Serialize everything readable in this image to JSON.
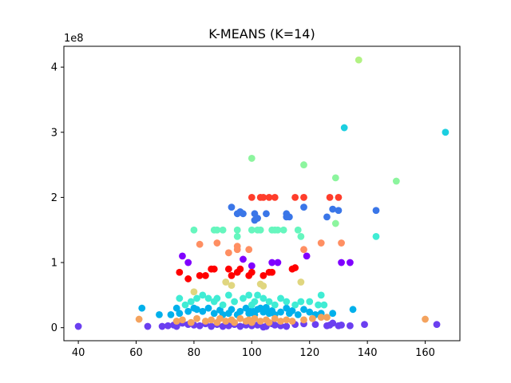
{
  "chart_data": {
    "type": "scatter",
    "title": "K-MEANS (K=14)",
    "xlabel": "",
    "ylabel": "",
    "y_offset_label": "1e8",
    "xlim": [
      35,
      172
    ],
    "ylim": [
      -20000000,
      432000000
    ],
    "xticks": [
      40,
      60,
      80,
      100,
      120,
      140,
      160
    ],
    "yticks": [
      0,
      100000000,
      200000000,
      300000000,
      400000000
    ],
    "ytick_labels": [
      "0",
      "1",
      "2",
      "3",
      "4"
    ],
    "grid": false,
    "legend": "none",
    "series": [
      {
        "color": "#8000ff",
        "points": [
          [
            76,
            110000000
          ],
          [
            78,
            100000000
          ],
          [
            97,
            105000000
          ],
          [
            100,
            95000000
          ],
          [
            107,
            100000000
          ],
          [
            109,
            100000000
          ],
          [
            119,
            110000000
          ],
          [
            131,
            100000000
          ],
          [
            134,
            100000000
          ]
        ]
      },
      {
        "color": "#6b3ff0",
        "points": [
          [
            40,
            2000000
          ],
          [
            64,
            2000000
          ],
          [
            69,
            2000000
          ],
          [
            71,
            3000000
          ],
          [
            73,
            4000000
          ],
          [
            74,
            2000000
          ],
          [
            76,
            7000000
          ],
          [
            78,
            5000000
          ],
          [
            80,
            4000000
          ],
          [
            82,
            3000000
          ],
          [
            84,
            6000000
          ],
          [
            86,
            2000000
          ],
          [
            88,
            5000000
          ],
          [
            90,
            2000000
          ],
          [
            92,
            3000000
          ],
          [
            94,
            5000000
          ],
          [
            96,
            2000000
          ],
          [
            98,
            4000000
          ],
          [
            100,
            3000000
          ],
          [
            102,
            4000000
          ],
          [
            104,
            1000000
          ],
          [
            105,
            2000000
          ],
          [
            107,
            6000000
          ],
          [
            108,
            4000000
          ],
          [
            110,
            3000000
          ],
          [
            112,
            2000000
          ],
          [
            115,
            5000000
          ],
          [
            118,
            6000000
          ],
          [
            122,
            5000000
          ],
          [
            126,
            3000000
          ],
          [
            127,
            4000000
          ],
          [
            128,
            7000000
          ],
          [
            130,
            3000000
          ],
          [
            131,
            4000000
          ],
          [
            134,
            3000000
          ],
          [
            139,
            5000000
          ],
          [
            164,
            5000000
          ]
        ]
      },
      {
        "color": "#3a76e8",
        "points": [
          [
            93,
            185000000
          ],
          [
            95,
            175000000
          ],
          [
            96,
            178000000
          ],
          [
            97,
            175000000
          ],
          [
            101,
            165000000
          ],
          [
            101,
            175000000
          ],
          [
            102,
            168000000
          ],
          [
            105,
            175000000
          ],
          [
            112,
            175000000
          ],
          [
            112,
            170000000
          ],
          [
            113,
            170000000
          ],
          [
            118,
            185000000
          ],
          [
            126,
            170000000
          ],
          [
            128,
            182000000
          ],
          [
            130,
            180000000
          ],
          [
            143,
            180000000
          ]
        ]
      },
      {
        "color": "#00b0eb",
        "points": [
          [
            62,
            30000000
          ],
          [
            68,
            20000000
          ],
          [
            72,
            20000000
          ],
          [
            74,
            30000000
          ],
          [
            75,
            22000000
          ],
          [
            78,
            25000000
          ],
          [
            80,
            30000000
          ],
          [
            81,
            28000000
          ],
          [
            83,
            25000000
          ],
          [
            85,
            30000000
          ],
          [
            87,
            22000000
          ],
          [
            89,
            27000000
          ],
          [
            90,
            20000000
          ],
          [
            92,
            22000000
          ],
          [
            93,
            28000000
          ],
          [
            95,
            20000000
          ],
          [
            96,
            25000000
          ],
          [
            98,
            30000000
          ],
          [
            99,
            22000000
          ],
          [
            100,
            26000000
          ],
          [
            101,
            20000000
          ],
          [
            102,
            28000000
          ],
          [
            103,
            30000000
          ],
          [
            104,
            24000000
          ],
          [
            105,
            31000000
          ],
          [
            106,
            22000000
          ],
          [
            107,
            26000000
          ],
          [
            108,
            20000000
          ],
          [
            110,
            24000000
          ],
          [
            112,
            30000000
          ],
          [
            113,
            22000000
          ],
          [
            114,
            26000000
          ],
          [
            116,
            20000000
          ],
          [
            118,
            28000000
          ],
          [
            120,
            24000000
          ],
          [
            122,
            20000000
          ],
          [
            124,
            22000000
          ],
          [
            128,
            22000000
          ],
          [
            135,
            28000000
          ]
        ]
      },
      {
        "color": "#1ccfe0",
        "points": [
          [
            132,
            307000000
          ],
          [
            167,
            300000000
          ]
        ]
      },
      {
        "color": "#40ecd4",
        "points": [
          [
            75,
            45000000
          ],
          [
            77,
            35000000
          ],
          [
            79,
            40000000
          ],
          [
            81,
            45000000
          ],
          [
            83,
            50000000
          ],
          [
            85,
            45000000
          ],
          [
            87,
            40000000
          ],
          [
            88,
            45000000
          ],
          [
            90,
            35000000
          ],
          [
            92,
            50000000
          ],
          [
            94,
            40000000
          ],
          [
            97,
            45000000
          ],
          [
            99,
            50000000
          ],
          [
            100,
            35000000
          ],
          [
            101,
            40000000
          ],
          [
            102,
            50000000
          ],
          [
            104,
            45000000
          ],
          [
            106,
            40000000
          ],
          [
            108,
            35000000
          ],
          [
            110,
            45000000
          ],
          [
            112,
            40000000
          ],
          [
            115,
            35000000
          ],
          [
            117,
            40000000
          ],
          [
            120,
            40000000
          ],
          [
            123,
            35000000
          ],
          [
            124,
            50000000
          ],
          [
            125,
            35000000
          ],
          [
            143,
            140000000
          ]
        ]
      },
      {
        "color": "#66f6be",
        "points": [
          [
            80,
            150000000
          ],
          [
            87,
            150000000
          ],
          [
            88,
            150000000
          ],
          [
            90,
            150000000
          ],
          [
            95,
            150000000
          ],
          [
            95,
            140000000
          ],
          [
            100,
            150000000
          ],
          [
            102,
            150000000
          ],
          [
            103,
            150000000
          ],
          [
            107,
            150000000
          ],
          [
            108,
            150000000
          ],
          [
            109,
            150000000
          ],
          [
            111,
            150000000
          ],
          [
            116,
            150000000
          ],
          [
            117,
            140000000
          ]
        ]
      },
      {
        "color": "#8cf59e",
        "points": [
          [
            100,
            260000000
          ],
          [
            118,
            250000000
          ],
          [
            129,
            230000000
          ],
          [
            129,
            160000000
          ],
          [
            150,
            225000000
          ]
        ]
      },
      {
        "color": "#b2f283",
        "points": [
          [
            137,
            411000000
          ]
        ]
      },
      {
        "color": "#e0d67f",
        "points": [
          [
            80,
            55000000
          ],
          [
            91,
            70000000
          ],
          [
            93,
            65000000
          ],
          [
            103,
            67000000
          ],
          [
            104,
            64000000
          ],
          [
            117,
            70000000
          ]
        ]
      },
      {
        "color": "#f4a35e",
        "points": [
          [
            61,
            13000000
          ],
          [
            74,
            10000000
          ],
          [
            76,
            12000000
          ],
          [
            79,
            8000000
          ],
          [
            81,
            14000000
          ],
          [
            84,
            10000000
          ],
          [
            86,
            12000000
          ],
          [
            88,
            8000000
          ],
          [
            89,
            14000000
          ],
          [
            91,
            10000000
          ],
          [
            93,
            12000000
          ],
          [
            94,
            8000000
          ],
          [
            96,
            14000000
          ],
          [
            98,
            10000000
          ],
          [
            99,
            12000000
          ],
          [
            100,
            8000000
          ],
          [
            101,
            14000000
          ],
          [
            103,
            10000000
          ],
          [
            105,
            12000000
          ],
          [
            106,
            8000000
          ],
          [
            108,
            14000000
          ],
          [
            110,
            10000000
          ],
          [
            112,
            12000000
          ],
          [
            114,
            10000000
          ],
          [
            118,
            12000000
          ],
          [
            121,
            14000000
          ],
          [
            124,
            16000000
          ],
          [
            126,
            16000000
          ],
          [
            160,
            13000000
          ]
        ]
      },
      {
        "color": "#ff8f62",
        "points": [
          [
            82,
            128000000
          ],
          [
            88,
            130000000
          ],
          [
            92,
            115000000
          ],
          [
            95,
            125000000
          ],
          [
            95,
            120000000
          ],
          [
            99,
            120000000
          ],
          [
            118,
            120000000
          ],
          [
            124,
            130000000
          ],
          [
            131,
            130000000
          ]
        ]
      },
      {
        "color": "#ff3d2b",
        "points": [
          [
            100,
            200000000
          ],
          [
            103,
            200000000
          ],
          [
            104,
            200000000
          ],
          [
            106,
            200000000
          ],
          [
            108,
            200000000
          ],
          [
            115,
            200000000
          ],
          [
            118,
            200000000
          ],
          [
            127,
            200000000
          ],
          [
            130,
            200000000
          ]
        ]
      },
      {
        "color": "#ff0000",
        "points": [
          [
            75,
            85000000
          ],
          [
            78,
            75000000
          ],
          [
            82,
            80000000
          ],
          [
            84,
            80000000
          ],
          [
            86,
            90000000
          ],
          [
            87,
            90000000
          ],
          [
            92,
            90000000
          ],
          [
            93,
            80000000
          ],
          [
            95,
            85000000
          ],
          [
            96,
            90000000
          ],
          [
            99,
            80000000
          ],
          [
            100,
            85000000
          ],
          [
            104,
            80000000
          ],
          [
            106,
            85000000
          ],
          [
            107,
            85000000
          ],
          [
            114,
            90000000
          ],
          [
            115,
            92000000
          ]
        ]
      }
    ]
  }
}
